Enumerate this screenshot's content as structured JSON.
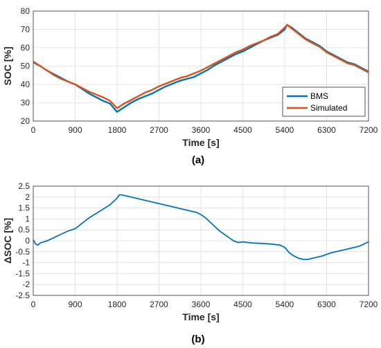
{
  "chart_data": [
    {
      "type": "line",
      "panel_label": "(a)",
      "xlabel": "Time [s]",
      "ylabel": "SOC [%]",
      "xlim": [
        0,
        7200
      ],
      "ylim": [
        20,
        80
      ],
      "xticks": [
        0,
        900,
        1800,
        2700,
        3600,
        4500,
        5400,
        6300,
        7200
      ],
      "yticks": [
        20,
        30,
        40,
        50,
        60,
        70,
        80
      ],
      "grid": true,
      "legend_position": "bottom-right",
      "series": [
        {
          "name": "BMS",
          "color": "#0072BD",
          "x": [
            0,
            150,
            300,
            450,
            600,
            750,
            900,
            1050,
            1200,
            1350,
            1500,
            1650,
            1800,
            1950,
            2100,
            2250,
            2400,
            2550,
            2700,
            2850,
            3000,
            3150,
            3300,
            3450,
            3600,
            3750,
            3900,
            4050,
            4200,
            4350,
            4500,
            4650,
            4800,
            4950,
            5100,
            5250,
            5400,
            5450,
            5550,
            5700,
            5850,
            6000,
            6150,
            6300,
            6450,
            6600,
            6750,
            6900,
            7050,
            7200
          ],
          "y": [
            52,
            50,
            47.5,
            45.5,
            43.5,
            41.5,
            40,
            37.5,
            35,
            33,
            31,
            29.5,
            25,
            27.5,
            30,
            32,
            33.5,
            35,
            37,
            39,
            40.5,
            42,
            43,
            44,
            46,
            48,
            50.5,
            52.5,
            54.5,
            56.5,
            58,
            60,
            62,
            64,
            65.5,
            67,
            70,
            72.5,
            71,
            68,
            65,
            63,
            61,
            58,
            56,
            54,
            52,
            51,
            49,
            47
          ]
        },
        {
          "name": "Simulated",
          "color": "#D95319",
          "x": [
            0,
            150,
            300,
            450,
            600,
            750,
            900,
            1050,
            1200,
            1350,
            1500,
            1650,
            1800,
            1950,
            2100,
            2250,
            2400,
            2550,
            2700,
            2850,
            3000,
            3150,
            3300,
            3450,
            3600,
            3750,
            3900,
            4050,
            4200,
            4350,
            4500,
            4650,
            4800,
            4950,
            5100,
            5250,
            5400,
            5450,
            5550,
            5700,
            5850,
            6000,
            6150,
            6300,
            6450,
            6600,
            6750,
            6900,
            7050,
            7200
          ],
          "y": [
            52.5,
            50,
            47.5,
            45,
            43,
            41.5,
            40,
            38,
            36,
            34.5,
            33,
            31,
            27,
            29.5,
            31.5,
            33.5,
            35.5,
            37,
            39,
            40.5,
            42,
            43.5,
            44.5,
            46,
            47.5,
            49.5,
            51.5,
            53.5,
            55.5,
            57.5,
            59,
            61,
            62.5,
            64,
            66,
            67.5,
            71,
            72.5,
            70.5,
            67.5,
            64.5,
            62.5,
            60.5,
            57.5,
            55.5,
            53.5,
            51.5,
            50.5,
            48.5,
            46.5
          ]
        }
      ]
    },
    {
      "type": "line",
      "panel_label": "(b)",
      "xlabel": "Time [s]",
      "ylabel": "ΔSOC [%]",
      "xlim": [
        0,
        7200
      ],
      "ylim": [
        -2.5,
        2.5
      ],
      "xticks": [
        0,
        900,
        1800,
        2700,
        3600,
        4500,
        5400,
        6300,
        7200
      ],
      "yticks": [
        -2.5,
        -2,
        -1.5,
        -1,
        -0.5,
        0,
        0.5,
        1,
        1.5,
        2,
        2.5
      ],
      "grid": true,
      "series": [
        {
          "color": "#0072BD",
          "x": [
            0,
            50,
            100,
            150,
            300,
            450,
            600,
            750,
            900,
            1050,
            1200,
            1350,
            1500,
            1650,
            1800,
            1850,
            1900,
            2100,
            2300,
            2500,
            2700,
            2900,
            3100,
            3300,
            3500,
            3600,
            3700,
            3800,
            3900,
            4000,
            4100,
            4200,
            4300,
            4400,
            4500,
            4700,
            4900,
            5100,
            5300,
            5400,
            5500,
            5600,
            5700,
            5800,
            5900,
            6000,
            6200,
            6400,
            6600,
            6800,
            7000,
            7100,
            7200
          ],
          "y": [
            0.05,
            -0.15,
            -0.2,
            -0.1,
            0,
            0.15,
            0.3,
            0.45,
            0.55,
            0.8,
            1.05,
            1.25,
            1.45,
            1.65,
            1.95,
            2.1,
            2.1,
            2.0,
            1.9,
            1.8,
            1.7,
            1.6,
            1.5,
            1.4,
            1.3,
            1.2,
            1.05,
            0.85,
            0.65,
            0.45,
            0.3,
            0.15,
            0.0,
            -0.08,
            -0.05,
            -0.1,
            -0.12,
            -0.15,
            -0.2,
            -0.3,
            -0.55,
            -0.7,
            -0.8,
            -0.85,
            -0.85,
            -0.8,
            -0.7,
            -0.55,
            -0.45,
            -0.35,
            -0.25,
            -0.15,
            -0.05
          ]
        }
      ]
    }
  ]
}
